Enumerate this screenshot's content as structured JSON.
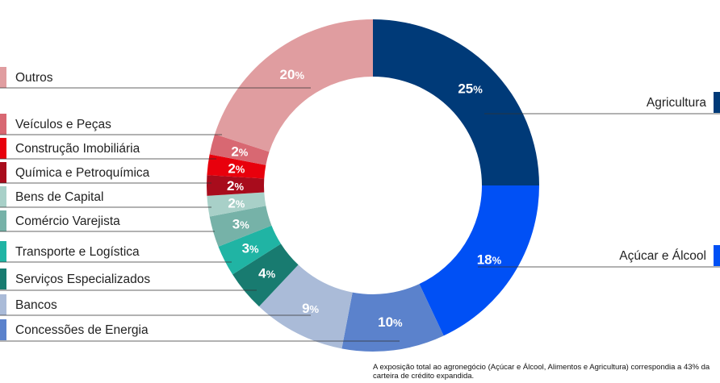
{
  "chart_data": {
    "type": "pie",
    "variant": "donut",
    "slices": [
      {
        "label": "Agricultura",
        "value": 25,
        "display": "25",
        "color": "#003a78",
        "legend_side": "right"
      },
      {
        "label": "Açúcar e Álcool",
        "value": 18,
        "display": "18",
        "color": "#0050f5",
        "legend_side": "right"
      },
      {
        "label": "",
        "value": 10,
        "display": "10",
        "color": "#5b82cc",
        "legend_side": "none"
      },
      {
        "label": "Concessões de Energia",
        "value": 9,
        "display": "9",
        "color": "#aabbd8",
        "legend_side": "left"
      },
      {
        "label": "Bancos",
        "value": 4,
        "display": "4",
        "color": "#187b70",
        "legend_side": "left"
      },
      {
        "label": "Serviços Especializados",
        "value": 3,
        "display": "3",
        "color": "#20b4a4",
        "legend_side": "left"
      },
      {
        "label": "Transporte e Logística",
        "value": 3,
        "display": "3",
        "color": "#76b2a8",
        "legend_side": "left"
      },
      {
        "label": "Comércio Varejista",
        "value": 2,
        "display": "2",
        "color": "#a8d0c8",
        "legend_side": "left"
      },
      {
        "label": "Bens de Capital",
        "value": 2,
        "display": "2",
        "color": "#a80c1c",
        "legend_side": "left"
      },
      {
        "label": "Química e Petroquímica",
        "value": 2,
        "display": "2",
        "color": "#e8000c",
        "legend_side": "left"
      },
      {
        "label": "Construção Imobiliária",
        "value": 2,
        "display": "2",
        "color": "#d86872",
        "legend_side": "left"
      },
      {
        "label": "Veículos e Peças",
        "value": 20,
        "display": "20",
        "color": "#e09da0",
        "legend_side": "left"
      },
      {
        "label": "Outros",
        "value": 0,
        "display": "",
        "color": "#e09da0",
        "legend_side": "left"
      }
    ],
    "percent_suffix": "%",
    "legend_placement": "left and right"
  },
  "footnote": "A exposição total ao agronegócio (Açúcar e Álcool, Alimentos e Agricultura) correspondia a 43% da carteira de crédito expandida."
}
